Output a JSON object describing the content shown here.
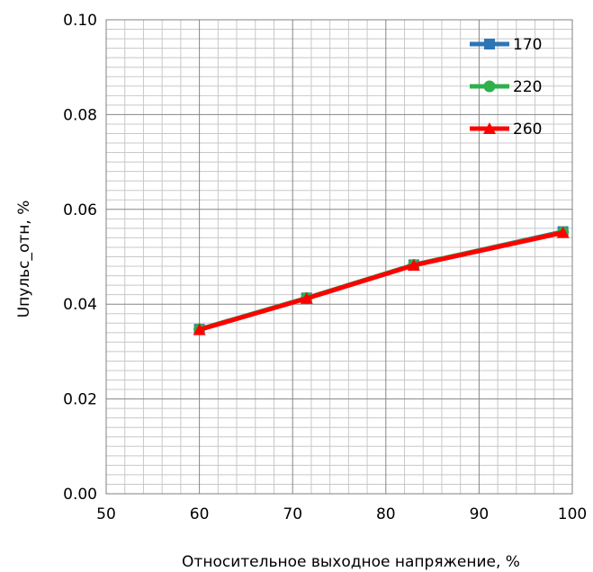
{
  "chart_data": {
    "type": "line",
    "title": "",
    "xlabel": "Относительное выходное напряжение, %",
    "ylabel": "Uпульс_отн, %",
    "xlim": [
      50,
      100
    ],
    "ylim": [
      0,
      0.1
    ],
    "x_ticks": [
      50,
      60,
      70,
      80,
      90,
      100
    ],
    "x_tick_labels": [
      "50",
      "60",
      "70",
      "80",
      "90",
      "100"
    ],
    "y_ticks": [
      0,
      0.02,
      0.04,
      0.06,
      0.08,
      0.1
    ],
    "y_tick_labels": [
      "0.00",
      "0.02",
      "0.04",
      "0.06",
      "0.08",
      "0.10"
    ],
    "grid": true,
    "legend_position": "top-right",
    "series": [
      {
        "name": "170",
        "color": "#2E75B6",
        "marker": "square",
        "x": [
          60,
          71.5,
          83,
          99
        ],
        "y": [
          0.0347,
          0.0413,
          0.0483,
          0.0553
        ]
      },
      {
        "name": "220",
        "color": "#2EB04B",
        "marker": "circle",
        "x": [
          60,
          71.5,
          83,
          99
        ],
        "y": [
          0.0347,
          0.0413,
          0.0483,
          0.0552
        ]
      },
      {
        "name": "260",
        "color": "#FF0000",
        "marker": "triangle",
        "x": [
          60,
          71.5,
          83,
          99
        ],
        "y": [
          0.0346,
          0.0412,
          0.0482,
          0.0551
        ]
      }
    ]
  }
}
